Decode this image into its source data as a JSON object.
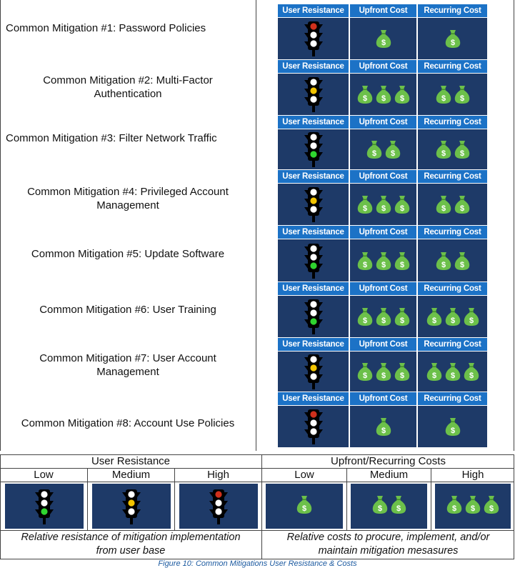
{
  "headers": {
    "user_resistance": "User Resistance",
    "upfront_cost": "Upfront Cost",
    "recurring_cost": "Recurring Cost"
  },
  "mitigations": [
    {
      "line1": "Common Mitigation #1: Password Policies",
      "line2": "",
      "resistance": "high",
      "upfront": 1,
      "recurring": 1
    },
    {
      "line1": "Common Mitigation #2: Multi-Factor",
      "line2": "Authentication",
      "resistance": "medium",
      "upfront": 3,
      "recurring": 2
    },
    {
      "line1": "Common Mitigation #3: Filter Network Traffic",
      "line2": "",
      "resistance": "low",
      "upfront": 2,
      "recurring": 2
    },
    {
      "line1": "Common Mitigation #4: Privileged Account",
      "line2": "Management",
      "resistance": "medium",
      "upfront": 3,
      "recurring": 2
    },
    {
      "line1": "Common Mitigation #5: Update Software",
      "line2": "",
      "resistance": "low",
      "upfront": 3,
      "recurring": 2
    },
    {
      "line1": "Common Mitigation #6: User Training",
      "line2": "",
      "resistance": "low",
      "upfront": 3,
      "recurring": 3
    },
    {
      "line1": "Common Mitigation #7: User Account",
      "line2": "Management",
      "resistance": "medium",
      "upfront": 3,
      "recurring": 3
    },
    {
      "line1": "Common Mitigation #8: Account Use Policies",
      "line2": "",
      "resistance": "high",
      "upfront": 1,
      "recurring": 1
    }
  ],
  "legend": {
    "resistance_title": "User Resistance",
    "cost_title": "Upfront/Recurring Costs",
    "levels": [
      "Low",
      "Medium",
      "High"
    ],
    "resistance_caption_1": "Relative resistance of mitigation implementation",
    "resistance_caption_2": "from user base",
    "cost_caption_1": "Relative costs to procure, implement, and/or",
    "cost_caption_2": "maintain mitigation mesasures"
  },
  "figure_caption": "Figure 10: Common Mitigations User Resistance & Costs",
  "colors": {
    "header_blue": "#1c72c6",
    "cell_navy": "#1e3a68",
    "light_red": "#d0301c",
    "light_yellow": "#f2c400",
    "light_green": "#2fd52f",
    "money_bag": "#6cc04a"
  }
}
